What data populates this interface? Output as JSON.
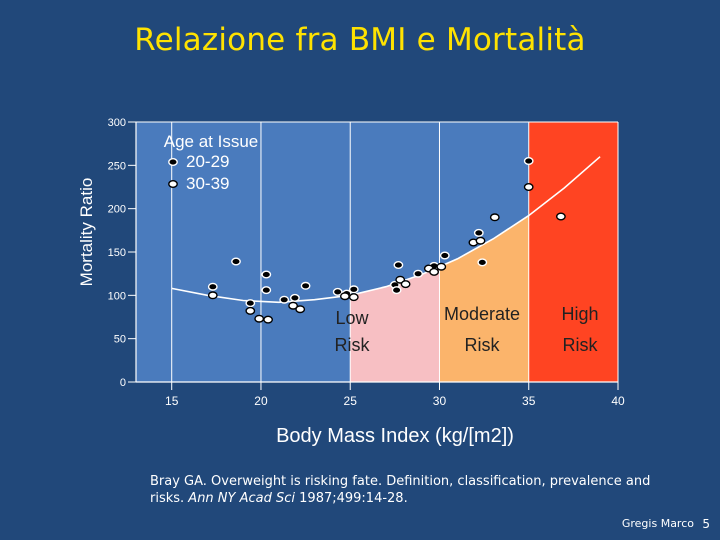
{
  "slide": {
    "title": "Relazione fra BMI e  Mortalità",
    "citation_main": "Bray GA.  Overweight is risking fate.  Definition,  classification, prevalence and risks.  ",
    "citation_journal": "Ann NY Acad Sci",
    "citation_tail": " 1987;499:14-28.",
    "author": "Gregis Marco",
    "page_number": "5"
  },
  "chart_data": {
    "type": "scatter",
    "title": "",
    "xlabel": "Body Mass Index (kg/[m2])",
    "ylabel": "Mortality Ratio",
    "xlim": [
      13,
      40
    ],
    "ylim": [
      0,
      300
    ],
    "x_ticks": [
      15,
      20,
      25,
      30,
      35,
      40
    ],
    "y_ticks": [
      0,
      50,
      100,
      150,
      200,
      250,
      300
    ],
    "legend": {
      "title": "Age at Issue",
      "position": "top-left",
      "entries": [
        "20-29",
        "30-39"
      ]
    },
    "zones": [
      {
        "name": "Low Risk",
        "line1": "Low",
        "line2": "Risk",
        "from": 25,
        "to": 30,
        "color": "#f7bfc3"
      },
      {
        "name": "Moderate Risk",
        "line1": "Moderate",
        "line2": "Risk",
        "from": 30,
        "to": 40,
        "color": "#fbb46b"
      },
      {
        "name": "High Risk",
        "line1": "High",
        "line2": "Risk",
        "from": 35,
        "to": 40,
        "color": "#ff4422"
      }
    ],
    "curve": [
      [
        15,
        108
      ],
      [
        17,
        100
      ],
      [
        19,
        94
      ],
      [
        21,
        92
      ],
      [
        23,
        95
      ],
      [
        25,
        100
      ],
      [
        27,
        110
      ],
      [
        29,
        124
      ],
      [
        31,
        142
      ],
      [
        33,
        165
      ],
      [
        35,
        192
      ],
      [
        37,
        224
      ],
      [
        39,
        260
      ]
    ],
    "series": [
      {
        "name": "20-29",
        "style": "filled",
        "points": [
          [
            17.3,
            110
          ],
          [
            18.6,
            139
          ],
          [
            19.4,
            91
          ],
          [
            20.3,
            124
          ],
          [
            20.3,
            106
          ],
          [
            21.3,
            95
          ],
          [
            21.9,
            97
          ],
          [
            22.5,
            111
          ],
          [
            24.3,
            104
          ],
          [
            24.8,
            102
          ],
          [
            25.2,
            107
          ],
          [
            27.7,
            135
          ],
          [
            27.5,
            112
          ],
          [
            27.6,
            106
          ],
          [
            28.8,
            125
          ],
          [
            29.7,
            134
          ],
          [
            30.3,
            146
          ],
          [
            32.2,
            172
          ],
          [
            32.4,
            138
          ],
          [
            35.0,
            255
          ]
        ]
      },
      {
        "name": "30-39",
        "style": "open",
        "points": [
          [
            17.3,
            100
          ],
          [
            19.4,
            82
          ],
          [
            19.9,
            73
          ],
          [
            20.4,
            72
          ],
          [
            21.8,
            88
          ],
          [
            22.2,
            84
          ],
          [
            24.7,
            99
          ],
          [
            25.2,
            98
          ],
          [
            27.8,
            118
          ],
          [
            28.1,
            113
          ],
          [
            29.4,
            131
          ],
          [
            29.7,
            127
          ],
          [
            30.1,
            133
          ],
          [
            31.9,
            161
          ],
          [
            32.3,
            163
          ],
          [
            33.1,
            190
          ],
          [
            35.0,
            225
          ],
          [
            36.8,
            191
          ]
        ]
      }
    ]
  }
}
